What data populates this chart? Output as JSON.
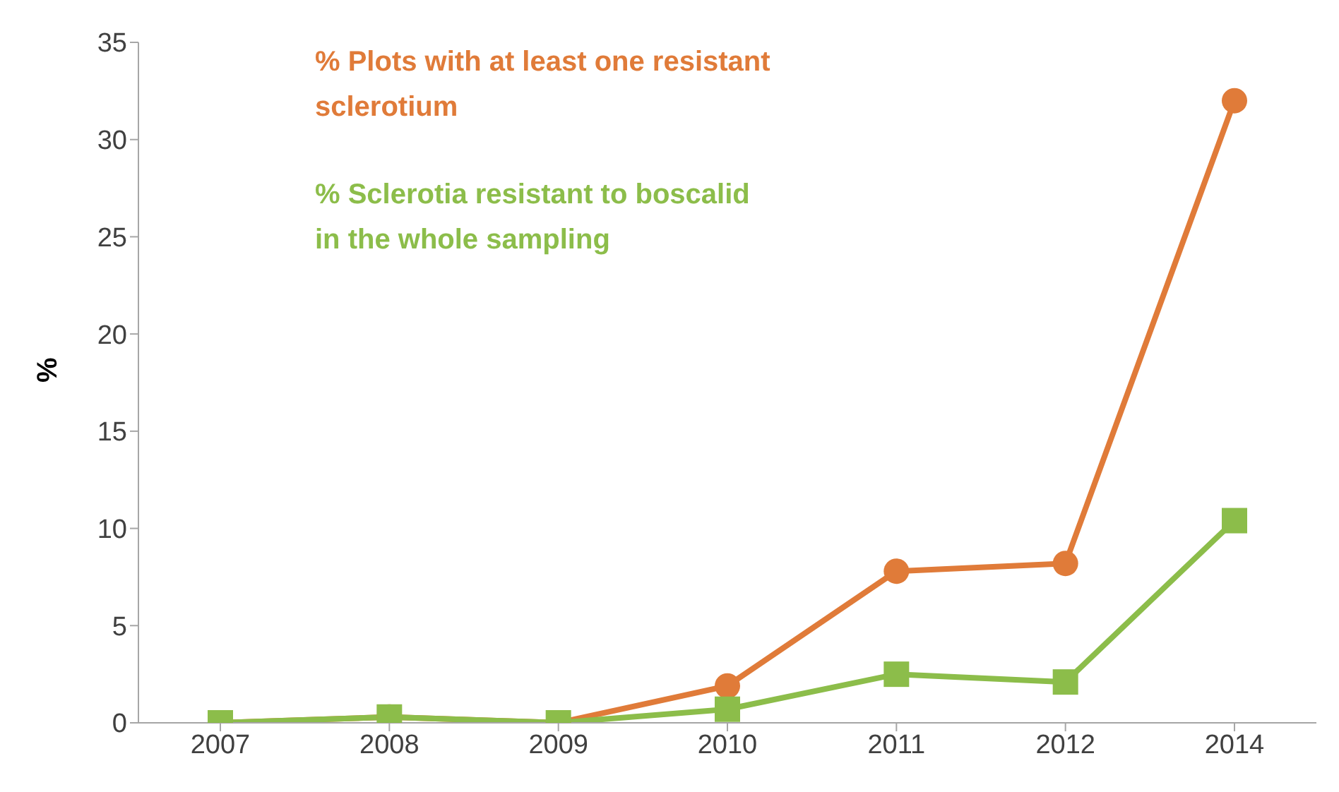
{
  "chart_data": {
    "type": "line",
    "ylabel": "%",
    "categories": [
      "2007",
      "2008",
      "2009",
      "2010",
      "2011",
      "2012",
      "2014"
    ],
    "series": [
      {
        "name": "% Plots with at least one resistant sclerotium",
        "color": "#e07b39",
        "marker": "circle",
        "values": [
          0,
          0.3,
          0,
          1.9,
          7.8,
          8.2,
          32
        ]
      },
      {
        "name": "% Sclerotia resistant to boscalid in the whole sampling",
        "color": "#8cbd4a",
        "marker": "square",
        "values": [
          0,
          0.3,
          0,
          0.7,
          2.5,
          2.1,
          10.4
        ]
      }
    ],
    "ylim": [
      0,
      35
    ],
    "yticks": [
      0,
      5,
      10,
      15,
      20,
      25,
      30,
      35
    ],
    "legend": "top left"
  }
}
